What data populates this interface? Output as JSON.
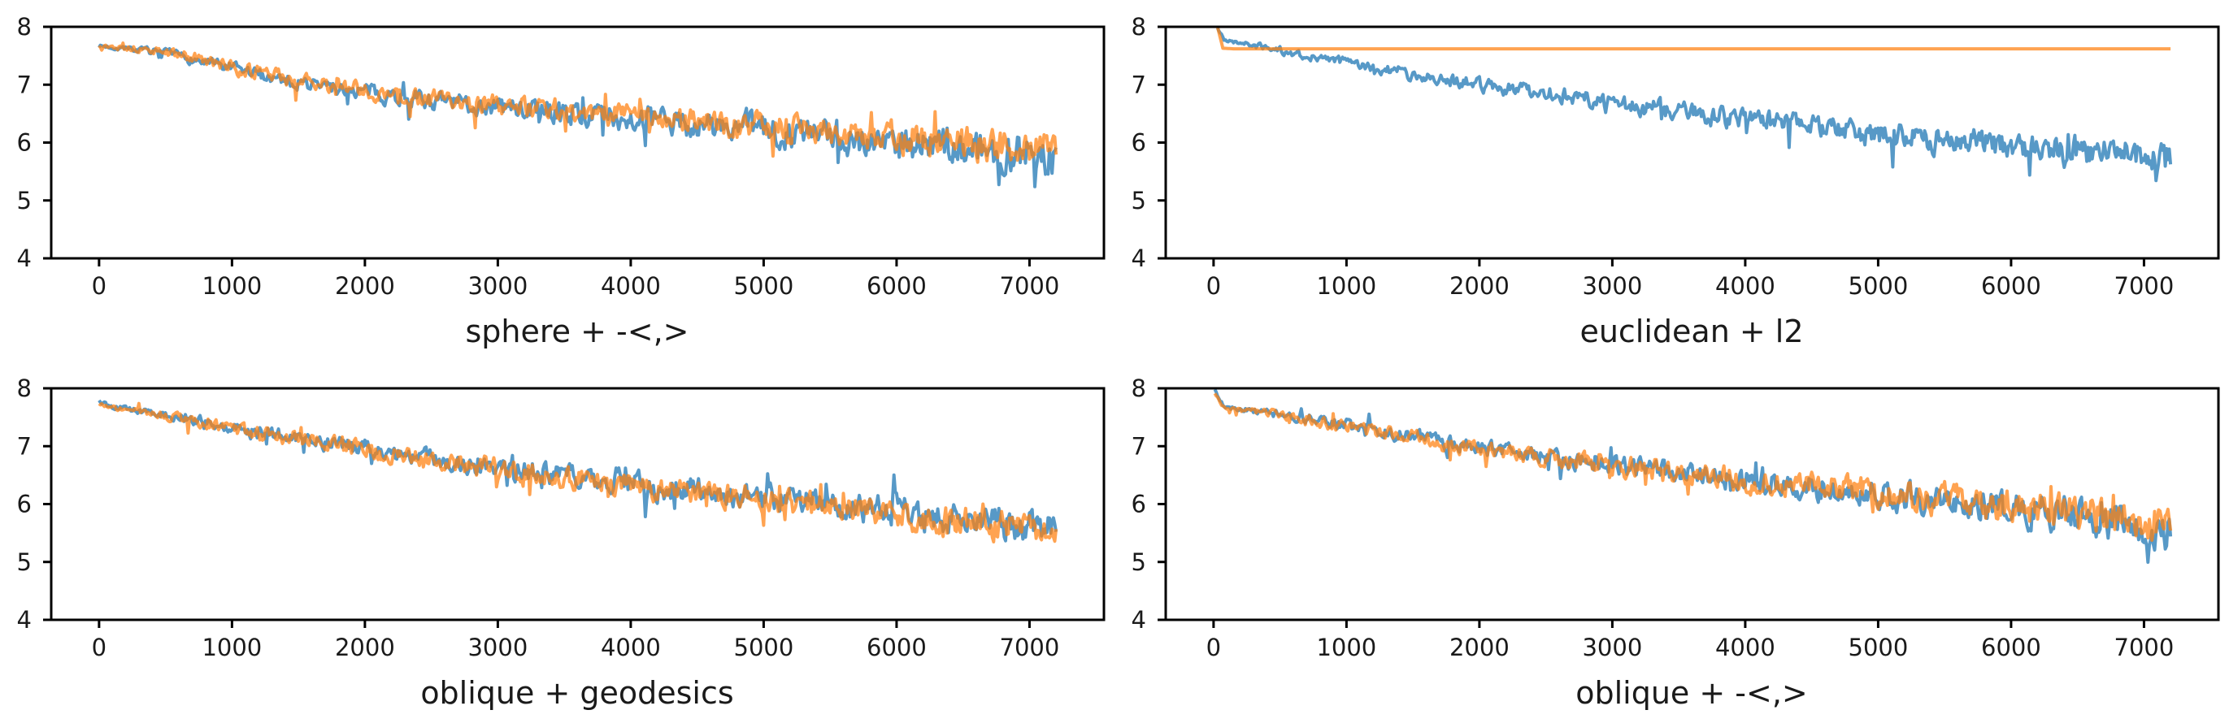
{
  "figure": {
    "background": "#ffffff",
    "axis_color": "#000000",
    "text_color": "#1a1a1a",
    "blue_color": "#1f77b4",
    "orange_color": "#ff7f0e",
    "blue_opacity": 0.75,
    "orange_opacity": 0.72,
    "grid": "off",
    "legend": "none"
  },
  "chart_data": [
    {
      "type": "line",
      "title": "sphere + -<,>",
      "xlim": [
        -360,
        7560
      ],
      "ylim": [
        4,
        8
      ],
      "xticks": [
        0,
        1000,
        2000,
        3000,
        4000,
        5000,
        6000,
        7000
      ],
      "yticks": [
        4,
        5,
        6,
        7,
        8
      ],
      "x_step": 10,
      "series": [
        {
          "name": "blue",
          "color": "#1f77b4",
          "opacity": 0.75,
          "seed": 7,
          "x_start": 0,
          "x_end": 7200,
          "trend": [
            [
              0,
              7.67
            ],
            [
              300,
              7.6
            ],
            [
              600,
              7.5
            ],
            [
              900,
              7.32
            ],
            [
              1200,
              7.18
            ],
            [
              1600,
              7.0
            ],
            [
              2000,
              6.88
            ],
            [
              2500,
              6.72
            ],
            [
              3000,
              6.62
            ],
            [
              3500,
              6.52
            ],
            [
              4000,
              6.42
            ],
            [
              4500,
              6.3
            ],
            [
              5000,
              6.22
            ],
            [
              5500,
              6.1
            ],
            [
              6000,
              6.02
            ],
            [
              6500,
              5.92
            ],
            [
              7000,
              5.78
            ],
            [
              7200,
              5.72
            ]
          ],
          "noise_amp": [
            [
              0,
              0.03
            ],
            [
              800,
              0.09
            ],
            [
              2000,
              0.13
            ],
            [
              4000,
              0.2
            ],
            [
              6000,
              0.28
            ],
            [
              7200,
              0.33
            ]
          ]
        },
        {
          "name": "orange",
          "color": "#ff7f0e",
          "opacity": 0.72,
          "seed": 13,
          "x_start": 0,
          "x_end": 7200,
          "trend": [
            [
              0,
              7.67
            ],
            [
              300,
              7.62
            ],
            [
              600,
              7.52
            ],
            [
              900,
              7.35
            ],
            [
              1200,
              7.2
            ],
            [
              1600,
              7.02
            ],
            [
              2000,
              6.9
            ],
            [
              2500,
              6.75
            ],
            [
              3000,
              6.65
            ],
            [
              3500,
              6.55
            ],
            [
              4000,
              6.45
            ],
            [
              4500,
              6.35
            ],
            [
              5000,
              6.28
            ],
            [
              5500,
              6.18
            ],
            [
              6000,
              6.1
            ],
            [
              6500,
              6.0
            ],
            [
              7000,
              5.9
            ],
            [
              7200,
              5.85
            ]
          ],
          "noise_amp": [
            [
              0,
              0.03
            ],
            [
              800,
              0.1
            ],
            [
              2000,
              0.14
            ],
            [
              4000,
              0.18
            ],
            [
              6000,
              0.24
            ],
            [
              7200,
              0.28
            ]
          ]
        }
      ]
    },
    {
      "type": "line",
      "title": "euclidean + l2",
      "xlim": [
        -360,
        7560
      ],
      "ylim": [
        4,
        8
      ],
      "xticks": [
        0,
        1000,
        2000,
        3000,
        4000,
        5000,
        6000,
        7000
      ],
      "yticks": [
        4,
        5,
        6,
        7,
        8
      ],
      "x_step": 10,
      "series": [
        {
          "name": "blue",
          "color": "#1f77b4",
          "opacity": 0.75,
          "seed": 21,
          "x_start": 30,
          "x_end": 7200,
          "trend": [
            [
              30,
              7.98
            ],
            [
              80,
              7.78
            ],
            [
              200,
              7.72
            ],
            [
              400,
              7.65
            ],
            [
              700,
              7.5
            ],
            [
              1000,
              7.38
            ],
            [
              1500,
              7.18
            ],
            [
              2000,
              7.0
            ],
            [
              2500,
              6.85
            ],
            [
              3000,
              6.68
            ],
            [
              3500,
              6.55
            ],
            [
              4000,
              6.4
            ],
            [
              4500,
              6.28
            ],
            [
              5000,
              6.12
            ],
            [
              5500,
              6.05
            ],
            [
              6000,
              5.95
            ],
            [
              6500,
              5.85
            ],
            [
              7000,
              5.75
            ],
            [
              7200,
              5.7
            ]
          ],
          "noise_amp": [
            [
              0,
              0.02
            ],
            [
              500,
              0.06
            ],
            [
              1500,
              0.1
            ],
            [
              3000,
              0.14
            ],
            [
              5000,
              0.2
            ],
            [
              7200,
              0.27
            ]
          ]
        },
        {
          "name": "orange",
          "color": "#ff7f0e",
          "opacity": 0.72,
          "seed": 2,
          "x_start": 30,
          "x_end": 7200,
          "trend": [
            [
              30,
              8.0
            ],
            [
              70,
              7.63
            ],
            [
              150,
              7.62
            ],
            [
              7200,
              7.62
            ]
          ],
          "noise_amp": [
            [
              0,
              0
            ],
            [
              7200,
              0
            ]
          ]
        }
      ]
    },
    {
      "type": "line",
      "title": "oblique + geodesics",
      "xlim": [
        -360,
        7560
      ],
      "ylim": [
        4,
        8
      ],
      "xticks": [
        0,
        1000,
        2000,
        3000,
        4000,
        5000,
        6000,
        7000
      ],
      "yticks": [
        4,
        5,
        6,
        7,
        8
      ],
      "x_step": 10,
      "series": [
        {
          "name": "blue",
          "color": "#1f77b4",
          "opacity": 0.75,
          "seed": 5,
          "x_start": 0,
          "x_end": 7200,
          "trend": [
            [
              0,
              7.78
            ],
            [
              100,
              7.68
            ],
            [
              300,
              7.62
            ],
            [
              600,
              7.5
            ],
            [
              900,
              7.38
            ],
            [
              1200,
              7.25
            ],
            [
              1600,
              7.1
            ],
            [
              2000,
              6.95
            ],
            [
              2500,
              6.78
            ],
            [
              3000,
              6.62
            ],
            [
              3500,
              6.5
            ],
            [
              4000,
              6.35
            ],
            [
              4500,
              6.22
            ],
            [
              5000,
              6.1
            ],
            [
              5500,
              5.98
            ],
            [
              6000,
              5.85
            ],
            [
              6500,
              5.72
            ],
            [
              7000,
              5.6
            ],
            [
              7200,
              5.55
            ]
          ],
          "noise_amp": [
            [
              0,
              0.03
            ],
            [
              1000,
              0.1
            ],
            [
              3000,
              0.16
            ],
            [
              5000,
              0.22
            ],
            [
              7200,
              0.28
            ]
          ]
        },
        {
          "name": "orange",
          "color": "#ff7f0e",
          "opacity": 0.72,
          "seed": 9,
          "x_start": 0,
          "x_end": 7200,
          "trend": [
            [
              0,
              7.75
            ],
            [
              100,
              7.66
            ],
            [
              300,
              7.6
            ],
            [
              600,
              7.48
            ],
            [
              900,
              7.35
            ],
            [
              1200,
              7.22
            ],
            [
              1600,
              7.08
            ],
            [
              2000,
              6.92
            ],
            [
              2500,
              6.76
            ],
            [
              3000,
              6.6
            ],
            [
              3500,
              6.48
            ],
            [
              4000,
              6.32
            ],
            [
              4500,
              6.2
            ],
            [
              5000,
              6.08
            ],
            [
              5500,
              5.95
            ],
            [
              6000,
              5.82
            ],
            [
              6500,
              5.7
            ],
            [
              7000,
              5.58
            ],
            [
              7200,
              5.52
            ]
          ],
          "noise_amp": [
            [
              0,
              0.03
            ],
            [
              1000,
              0.11
            ],
            [
              3000,
              0.17
            ],
            [
              5000,
              0.2
            ],
            [
              7200,
              0.25
            ]
          ]
        }
      ]
    },
    {
      "type": "line",
      "title": "oblique + -<,>",
      "xlim": [
        -360,
        7560
      ],
      "ylim": [
        4,
        8
      ],
      "xticks": [
        0,
        1000,
        2000,
        3000,
        4000,
        5000,
        6000,
        7000
      ],
      "yticks": [
        4,
        5,
        6,
        7,
        8
      ],
      "x_step": 10,
      "series": [
        {
          "name": "blue",
          "color": "#1f77b4",
          "opacity": 0.75,
          "seed": 17,
          "x_start": 10,
          "x_end": 7200,
          "trend": [
            [
              10,
              7.97
            ],
            [
              80,
              7.68
            ],
            [
              250,
              7.63
            ],
            [
              500,
              7.55
            ],
            [
              900,
              7.4
            ],
            [
              1200,
              7.28
            ],
            [
              1600,
              7.12
            ],
            [
              2000,
              6.98
            ],
            [
              2500,
              6.82
            ],
            [
              3000,
              6.68
            ],
            [
              3500,
              6.55
            ],
            [
              4000,
              6.42
            ],
            [
              4500,
              6.3
            ],
            [
              5000,
              6.18
            ],
            [
              5500,
              6.05
            ],
            [
              6000,
              5.92
            ],
            [
              6500,
              5.8
            ],
            [
              7000,
              5.65
            ],
            [
              7200,
              5.55
            ]
          ],
          "noise_amp": [
            [
              0,
              0.03
            ],
            [
              1000,
              0.1
            ],
            [
              3000,
              0.15
            ],
            [
              5000,
              0.22
            ],
            [
              7200,
              0.32
            ]
          ]
        },
        {
          "name": "orange",
          "color": "#ff7f0e",
          "opacity": 0.72,
          "seed": 3,
          "x_start": 10,
          "x_end": 7200,
          "trend": [
            [
              10,
              7.9
            ],
            [
              80,
              7.66
            ],
            [
              250,
              7.62
            ],
            [
              500,
              7.54
            ],
            [
              900,
              7.38
            ],
            [
              1200,
              7.26
            ],
            [
              1600,
              7.1
            ],
            [
              2000,
              6.96
            ],
            [
              2500,
              6.8
            ],
            [
              3000,
              6.66
            ],
            [
              3500,
              6.53
            ],
            [
              4000,
              6.4
            ],
            [
              4500,
              6.3
            ],
            [
              5000,
              6.2
            ],
            [
              5500,
              6.08
            ],
            [
              6000,
              5.95
            ],
            [
              6500,
              5.85
            ],
            [
              7000,
              5.75
            ],
            [
              7200,
              5.68
            ]
          ],
          "noise_amp": [
            [
              0,
              0.03
            ],
            [
              1000,
              0.1
            ],
            [
              3000,
              0.16
            ],
            [
              5000,
              0.24
            ],
            [
              7200,
              0.3
            ]
          ]
        }
      ]
    }
  ]
}
